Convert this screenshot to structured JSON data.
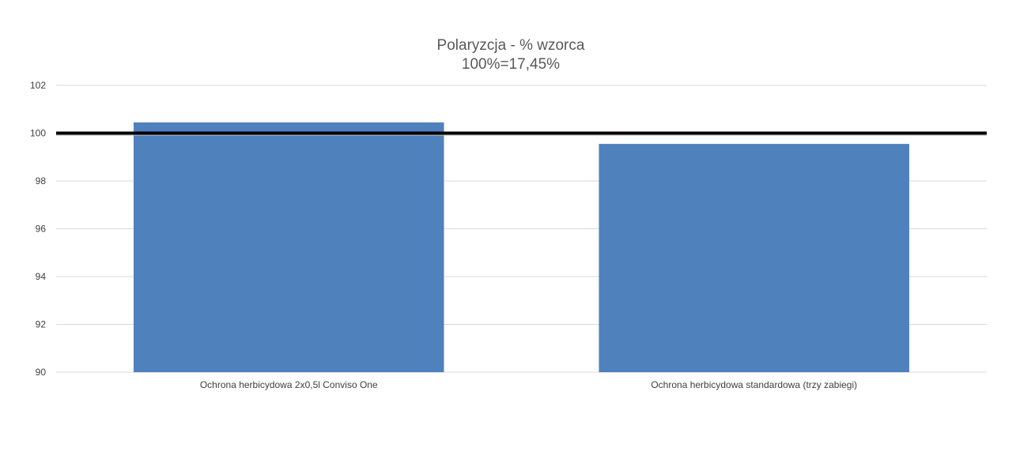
{
  "chart_data": {
    "type": "bar",
    "title": "Polaryzcja - % wzorca",
    "subtitle": "100%=17,45%",
    "categories": [
      "Ochrona herbicydowa 2x0,5l Conviso One",
      "Ochrona herbicydowa standardowa (trzy zabiegi)"
    ],
    "values": [
      100.45,
      99.55
    ],
    "ylim": [
      90,
      102
    ],
    "yticks": [
      90,
      92,
      94,
      96,
      98,
      100,
      102
    ],
    "reference_line": 100,
    "grid": true,
    "bar_color": "#4f81bd",
    "reference_line_color": "#000000"
  }
}
